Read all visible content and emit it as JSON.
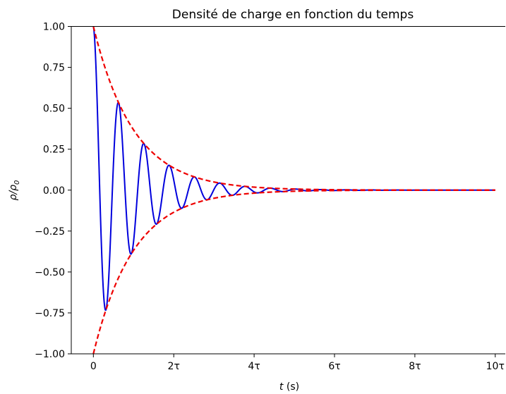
{
  "chart_data": {
    "type": "line",
    "title": "Densité de charge en fonction du temps",
    "xlabel": {
      "var": "t",
      "unit": " (s)"
    },
    "ylabel": {
      "base": "ρ/ρ",
      "sub": "0"
    },
    "xlim": [
      -0.55,
      10.25
    ],
    "ylim": [
      -1.0,
      1.0
    ],
    "x_ticks": [
      {
        "value": 0,
        "label": "0"
      },
      {
        "value": 2,
        "label": "2τ"
      },
      {
        "value": 4,
        "label": "4τ"
      },
      {
        "value": 6,
        "label": "6τ"
      },
      {
        "value": 8,
        "label": "8τ"
      },
      {
        "value": 10,
        "label": "10τ"
      }
    ],
    "y_ticks": [
      {
        "value": 1.0,
        "label": "1.00"
      },
      {
        "value": 0.75,
        "label": "0.75"
      },
      {
        "value": 0.5,
        "label": "0.50"
      },
      {
        "value": 0.25,
        "label": "0.25"
      },
      {
        "value": 0.0,
        "label": "0.00"
      },
      {
        "value": -0.25,
        "label": "−0.25"
      },
      {
        "value": -0.5,
        "label": "−0.50"
      },
      {
        "value": -0.75,
        "label": "−0.75"
      },
      {
        "value": -1.0,
        "label": "−1.00"
      }
    ],
    "grid": false,
    "spines": [
      "left",
      "bottom",
      "top"
    ],
    "series": [
      {
        "kind": "damped-cosine",
        "color": "#0000dd",
        "style": "solid",
        "x_range": [
          0,
          10
        ],
        "amplitude": 1.0,
        "decay_per_tau": 1.0,
        "period_tau": 0.63,
        "approx_points": [
          {
            "x": 0.0,
            "y": 1.0
          },
          {
            "x": 0.32,
            "y": -0.73
          },
          {
            "x": 0.63,
            "y": 0.53
          },
          {
            "x": 0.95,
            "y": -0.39
          },
          {
            "x": 1.26,
            "y": 0.28
          },
          {
            "x": 1.58,
            "y": -0.21
          },
          {
            "x": 1.89,
            "y": 0.15
          },
          {
            "x": 2.21,
            "y": -0.11
          },
          {
            "x": 2.52,
            "y": 0.08
          },
          {
            "x": 3.15,
            "y": 0.04
          },
          {
            "x": 3.78,
            "y": 0.02
          },
          {
            "x": 10.0,
            "y": 0.0
          }
        ]
      },
      {
        "kind": "envelope",
        "color": "#ee0000",
        "style": "dashed",
        "x_range": [
          0,
          10
        ],
        "approx_points": [
          {
            "x": 0,
            "y": 1.0
          },
          {
            "x": 1,
            "y": 0.37
          },
          {
            "x": 2,
            "y": 0.14
          },
          {
            "x": 3,
            "y": 0.05
          },
          {
            "x": 10,
            "y": 0.0
          }
        ]
      },
      {
        "kind": "envelope",
        "color": "#ee0000",
        "style": "dashed",
        "x_range": [
          0,
          10
        ],
        "approx_points": [
          {
            "x": 0,
            "y": -1.0
          },
          {
            "x": 1,
            "y": -0.37
          },
          {
            "x": 2,
            "y": -0.14
          },
          {
            "x": 3,
            "y": -0.05
          },
          {
            "x": 10,
            "y": 0.0
          }
        ]
      }
    ]
  }
}
